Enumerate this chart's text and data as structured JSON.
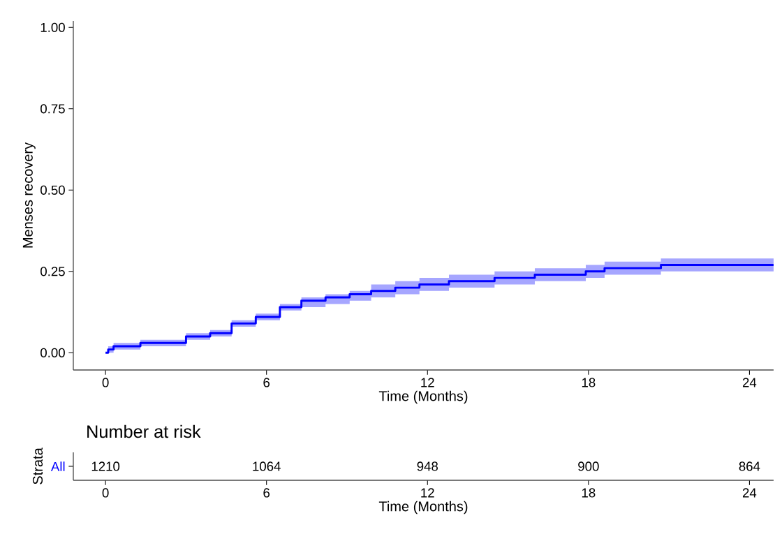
{
  "chart_data": [
    {
      "type": "step",
      "xlabel": "Time (Months)",
      "ylabel": "Menses recovery",
      "xlim": [
        -1.2,
        24.9
      ],
      "ylim": [
        -0.053,
        1.02
      ],
      "xticks": [
        0,
        6,
        12,
        18,
        24
      ],
      "yticks": [
        {
          "value": 0,
          "label": "0.00"
        },
        {
          "value": 0.25,
          "label": "0.25"
        },
        {
          "value": 0.5,
          "label": "0.50"
        },
        {
          "value": 0.75,
          "label": "0.75"
        },
        {
          "value": 1,
          "label": "1.00"
        }
      ],
      "x": [
        0,
        0.1,
        0.3,
        1.3,
        2.1,
        3.0,
        3.9,
        4.7,
        5.6,
        6.5,
        7.3,
        8.2,
        9.1,
        9.9,
        10.8,
        11.7,
        12.8,
        14.5,
        16.0,
        17.9,
        18.6,
        20.7,
        24.9
      ],
      "series": [
        {
          "color": "#0000ff",
          "values": [
            0,
            0.01,
            0.02,
            0.03,
            0.03,
            0.05,
            0.06,
            0.09,
            0.11,
            0.14,
            0.16,
            0.17,
            0.18,
            0.19,
            0.2,
            0.21,
            0.22,
            0.23,
            0.24,
            0.25,
            0.26,
            0.27,
            0.27
          ],
          "lower": [
            0,
            0,
            0.01,
            0.02,
            0.02,
            0.04,
            0.05,
            0.08,
            0.1,
            0.13,
            0.14,
            0.15,
            0.16,
            0.17,
            0.18,
            0.19,
            0.2,
            0.21,
            0.22,
            0.23,
            0.24,
            0.25,
            0.25
          ],
          "upper": [
            0,
            0.02,
            0.03,
            0.04,
            0.04,
            0.06,
            0.07,
            0.1,
            0.12,
            0.15,
            0.17,
            0.18,
            0.19,
            0.21,
            0.22,
            0.23,
            0.24,
            0.25,
            0.26,
            0.27,
            0.28,
            0.29,
            0.29
          ]
        }
      ],
      "grid": false,
      "legend": false,
      "line_style": "solid"
    },
    {
      "type": "heatmap",
      "title": "Number at risk",
      "xlabel": "Time (Months)",
      "ylabel": "Strata",
      "categories": [
        "0",
        "6",
        "12",
        "18",
        "24"
      ],
      "y_categories": [
        "All"
      ],
      "cells": [
        [
          1210,
          1064,
          948,
          900,
          864
        ]
      ],
      "data_labels": true
    }
  ]
}
